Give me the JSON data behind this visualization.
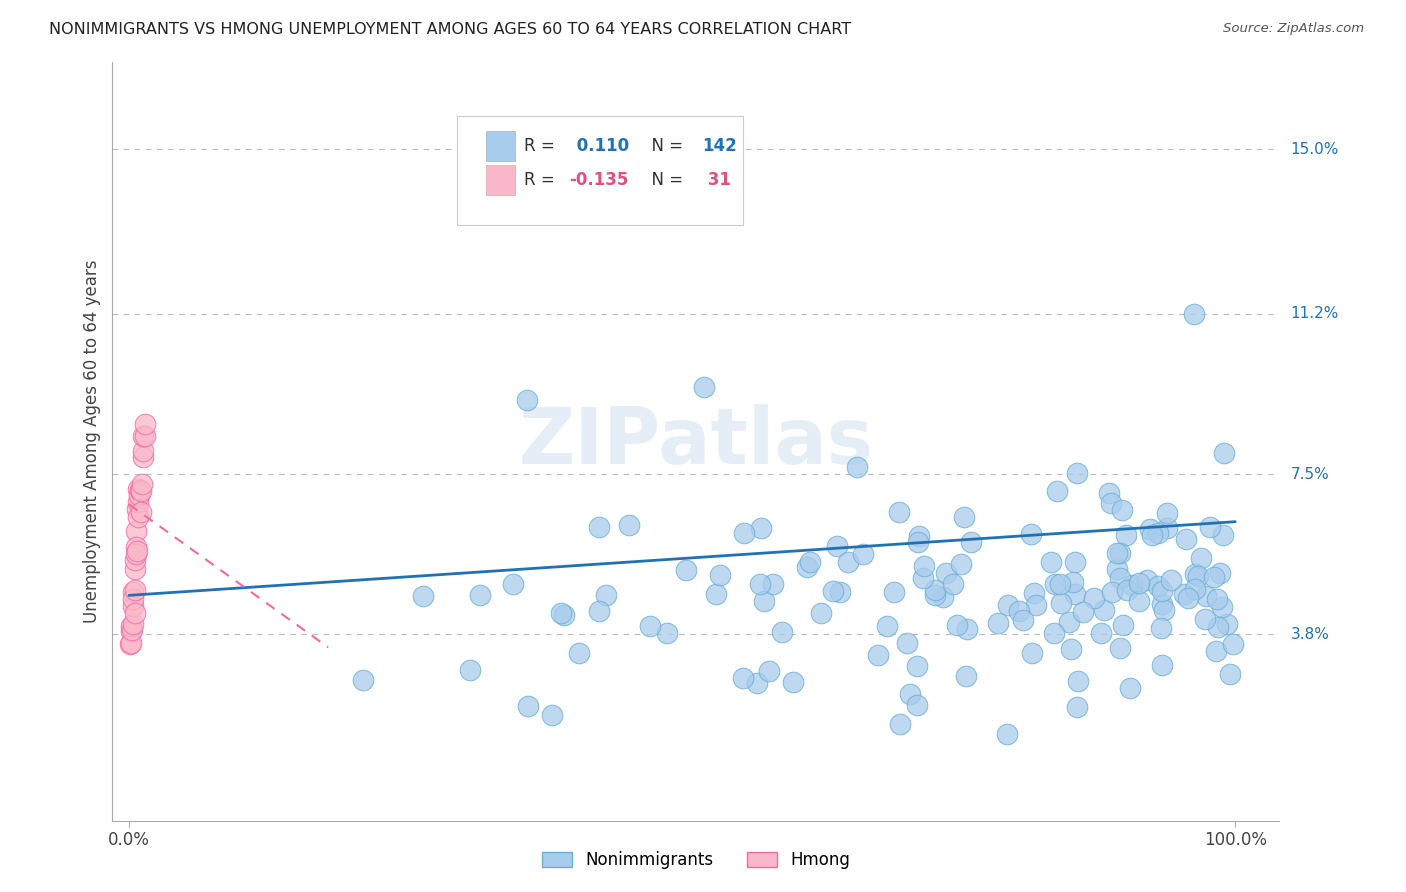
{
  "title": "NONIMMIGRANTS VS HMONG UNEMPLOYMENT AMONG AGES 60 TO 64 YEARS CORRELATION CHART",
  "source": "Source: ZipAtlas.com",
  "ylabel": "Unemployment Among Ages 60 to 64 years",
  "ytick_labels": [
    "3.8%",
    "7.5%",
    "11.2%",
    "15.0%"
  ],
  "ytick_values": [
    3.8,
    7.5,
    11.2,
    15.0
  ],
  "xtick_labels": [
    "0.0%",
    "100.0%"
  ],
  "xtick_values": [
    0,
    100
  ],
  "nonimmigrant_color": "#a8ccec",
  "nonimmigrant_edge_color": "#6baed6",
  "hmong_color": "#f9b8ca",
  "hmong_edge_color": "#f768a1",
  "nonimmigrant_line_color": "#2171b5",
  "hmong_line_color": "#f768a1",
  "R_nonimmigrant": 0.11,
  "N_nonimmigrant": 142,
  "R_hmong": -0.135,
  "N_hmong": 31,
  "background_color": "#ffffff",
  "grid_color": "#bbbbbb",
  "watermark": "ZIPatlas",
  "legend_text_color": "#333333",
  "legend_value_color": "#2171b5",
  "legend_hmong_value_color": "#e05080",
  "ni_trend_y_start": 4.7,
  "ni_trend_y_end": 6.4,
  "hmong_trend_x_start": 0,
  "hmong_trend_x_end": 18,
  "hmong_trend_y_start": 6.8,
  "hmong_trend_y_end": 3.5
}
